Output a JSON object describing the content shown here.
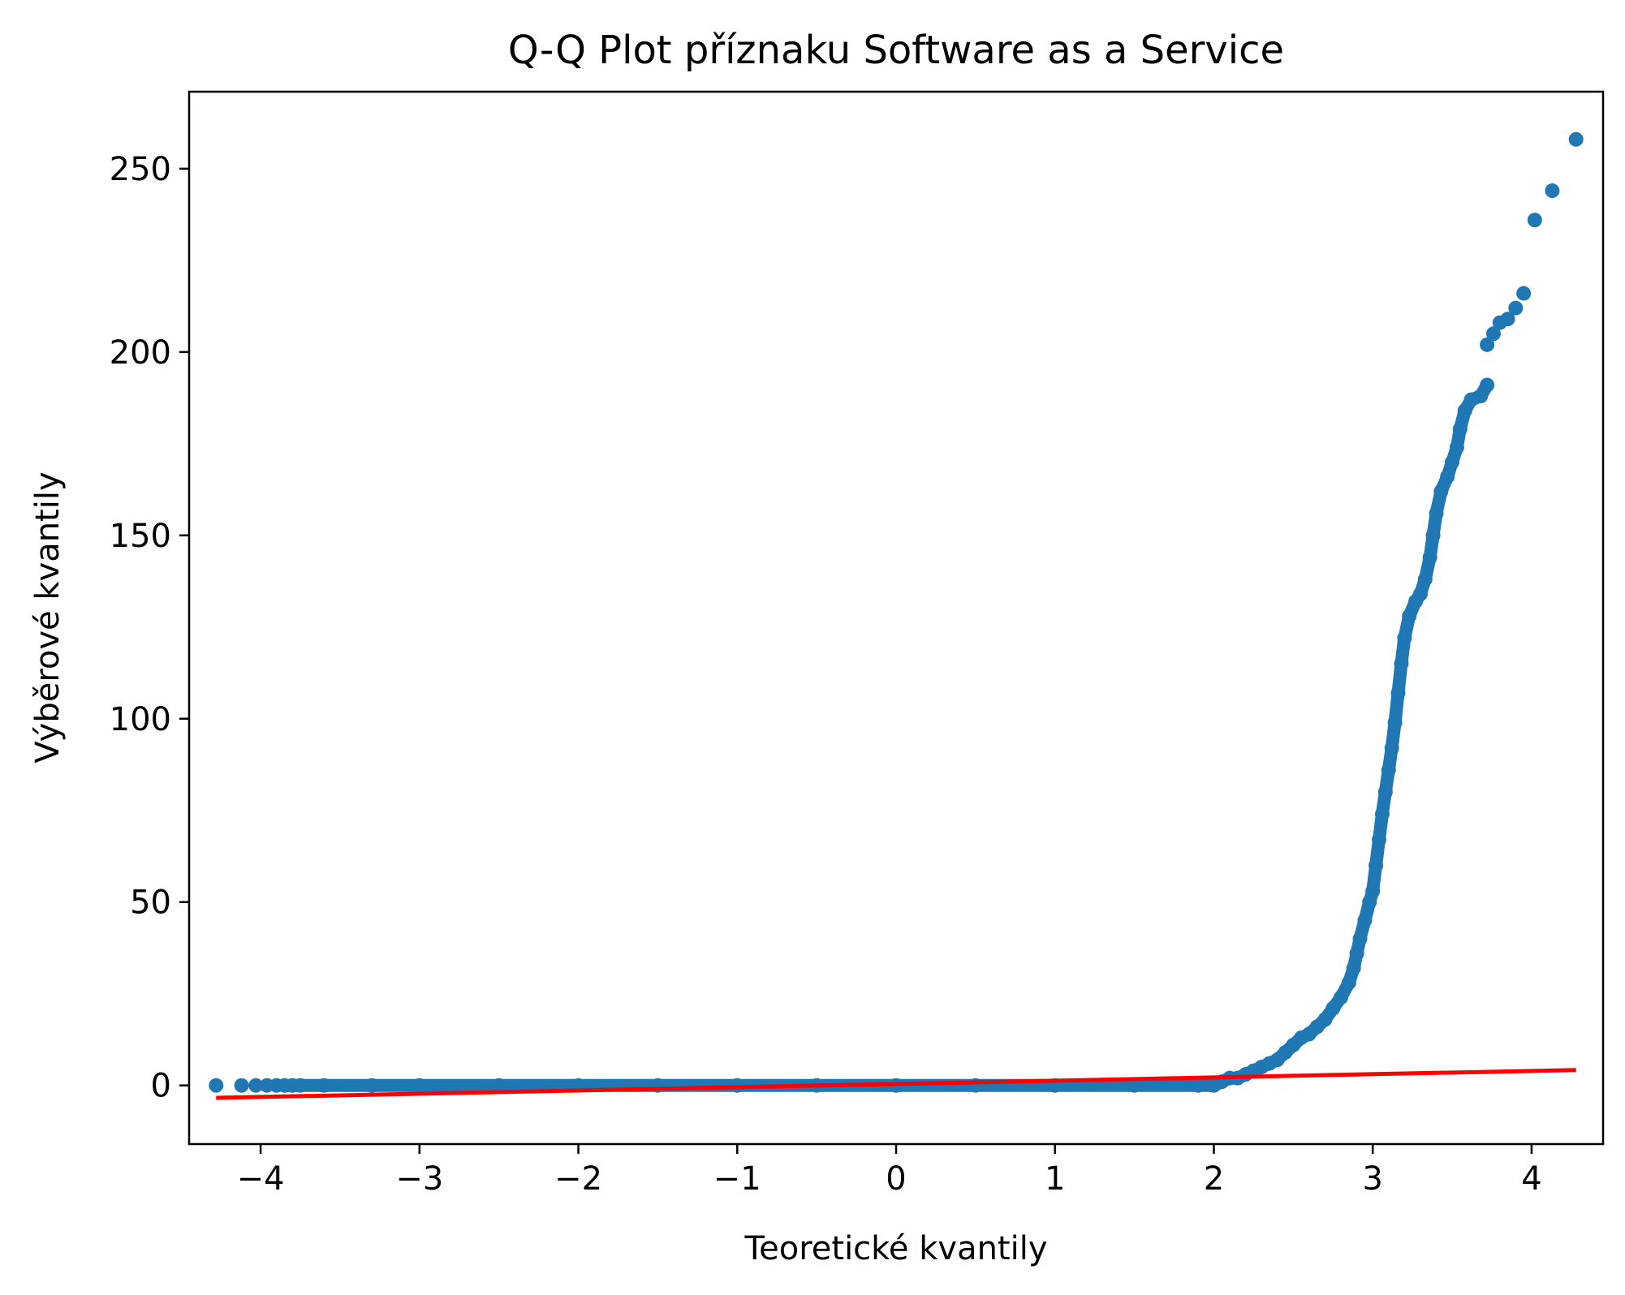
{
  "chart_data": {
    "type": "scatter",
    "title": "Q-Q Plot příznaku Software as a Service",
    "xlabel": "Teoretické kvantily",
    "ylabel": "Výběrové kvantily",
    "xlim": [
      -4.45,
      4.45
    ],
    "ylim": [
      -16,
      271
    ],
    "x_ticks": [
      -4,
      -3,
      -2,
      -1,
      0,
      1,
      2,
      3,
      4
    ],
    "x_tick_labels": [
      "−4",
      "−3",
      "−2",
      "−1",
      "0",
      "1",
      "2",
      "3",
      "4"
    ],
    "y_ticks": [
      0,
      50,
      100,
      150,
      200,
      250
    ],
    "y_tick_labels": [
      "0",
      "50",
      "100",
      "150",
      "200",
      "250"
    ],
    "grid": false,
    "series": [
      {
        "kind": "points",
        "color": "#1f77b4",
        "points": [
          [
            -4.28,
            0
          ],
          [
            -4.12,
            0
          ],
          [
            -4.03,
            0
          ],
          [
            -3.96,
            0
          ],
          [
            -3.9,
            0
          ],
          [
            -3.85,
            0
          ],
          [
            -3.8,
            0
          ],
          [
            -3.75,
            0
          ],
          [
            -3.6,
            0
          ],
          [
            -3.3,
            0
          ],
          [
            -3.0,
            0
          ],
          [
            -2.5,
            0
          ],
          [
            -2.0,
            0
          ],
          [
            -1.5,
            0
          ],
          [
            -1.0,
            0
          ],
          [
            -0.5,
            0
          ],
          [
            0.0,
            0
          ],
          [
            0.5,
            0
          ],
          [
            1.0,
            0
          ],
          [
            1.5,
            0
          ],
          [
            1.9,
            0
          ],
          [
            2.0,
            0
          ],
          [
            2.05,
            1
          ],
          [
            2.1,
            2
          ],
          [
            2.15,
            2
          ],
          [
            2.2,
            3
          ],
          [
            2.25,
            4
          ],
          [
            2.3,
            5
          ],
          [
            2.35,
            6
          ],
          [
            2.4,
            7
          ],
          [
            2.45,
            9
          ],
          [
            2.5,
            11
          ],
          [
            2.55,
            13
          ],
          [
            2.6,
            14
          ],
          [
            2.65,
            16
          ],
          [
            2.7,
            18
          ],
          [
            2.75,
            21
          ],
          [
            2.8,
            24
          ],
          [
            2.85,
            28
          ],
          [
            2.88,
            32
          ],
          [
            2.9,
            36
          ],
          [
            2.92,
            40
          ],
          [
            2.95,
            45
          ],
          [
            2.98,
            50
          ],
          [
            3.0,
            53
          ],
          [
            3.02,
            60
          ],
          [
            3.04,
            67
          ],
          [
            3.06,
            74
          ],
          [
            3.08,
            80
          ],
          [
            3.1,
            86
          ],
          [
            3.12,
            92
          ],
          [
            3.14,
            99
          ],
          [
            3.16,
            107
          ],
          [
            3.18,
            115
          ],
          [
            3.2,
            122
          ],
          [
            3.23,
            128
          ],
          [
            3.27,
            132
          ],
          [
            3.3,
            134
          ],
          [
            3.33,
            138
          ],
          [
            3.36,
            144
          ],
          [
            3.38,
            150
          ],
          [
            3.4,
            156
          ],
          [
            3.43,
            162
          ],
          [
            3.47,
            166
          ],
          [
            3.5,
            170
          ],
          [
            3.53,
            174
          ],
          [
            3.55,
            179
          ],
          [
            3.58,
            184
          ],
          [
            3.62,
            187
          ],
          [
            3.68,
            188
          ],
          [
            3.72,
            191
          ],
          [
            3.72,
            202
          ],
          [
            3.76,
            205
          ],
          [
            3.8,
            208
          ],
          [
            3.85,
            209
          ],
          [
            3.9,
            212
          ],
          [
            3.95,
            216
          ],
          [
            4.02,
            236
          ],
          [
            4.13,
            244
          ],
          [
            4.28,
            258
          ]
        ]
      },
      {
        "kind": "line",
        "color": "#ff0000",
        "points": [
          [
            -4.28,
            -3.4
          ],
          [
            4.28,
            4.2
          ]
        ]
      }
    ]
  }
}
